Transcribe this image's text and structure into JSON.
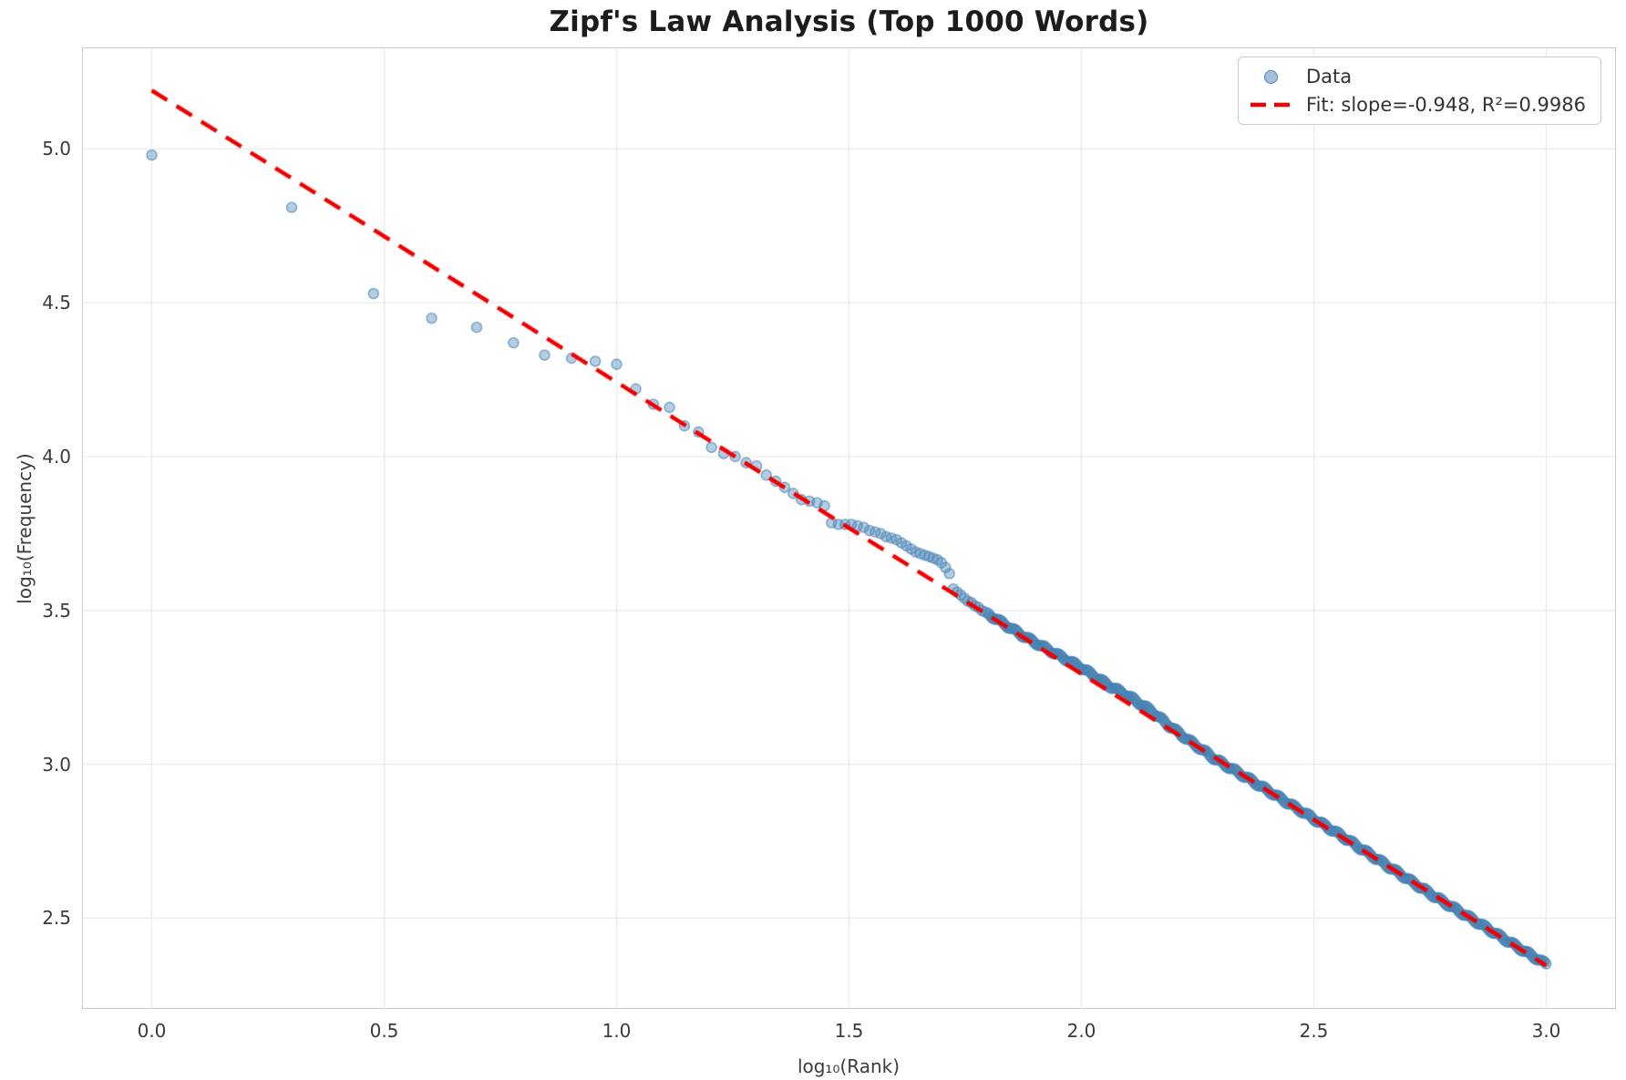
{
  "chart_data": {
    "type": "scatter",
    "title": "Zipf's Law Analysis (Top 1000 Words)",
    "xlabel": "log₁₀(Rank)",
    "ylabel": "log₁₀(Frequency)",
    "xlim": [
      -0.15,
      3.15
    ],
    "ylim": [
      2.205,
      5.33
    ],
    "grid": true,
    "x_ticks": {
      "values": [
        0.0,
        0.5,
        1.0,
        1.5,
        2.0,
        2.5,
        3.0
      ],
      "labels": [
        "0.0",
        "0.5",
        "1.0",
        "1.5",
        "2.0",
        "2.5",
        "3.0"
      ]
    },
    "y_ticks": {
      "values": [
        2.5,
        3.0,
        3.5,
        4.0,
        4.5,
        5.0
      ],
      "labels": [
        "2.5",
        "3.0",
        "3.5",
        "4.0",
        "4.5",
        "5.0"
      ]
    },
    "legend": {
      "position": "upper right",
      "items": [
        {
          "label": "Data",
          "type": "marker"
        },
        {
          "label": "Fit: slope=-0.948, R²=0.9986",
          "type": "dashed-line"
        }
      ]
    },
    "fit": {
      "slope": -0.948,
      "intercept": 5.19,
      "r_squared": 0.9986,
      "x_range": [
        0.0,
        3.0
      ],
      "color": "#f20000",
      "linewidth": 4.5,
      "dash": [
        20,
        12
      ]
    },
    "scatter_style": {
      "radius": 5.5,
      "fill_alpha": 0.4,
      "edge_alpha": 0.75
    },
    "colors": {
      "marker": "#4682b4",
      "marker_rgb": "70,130,180",
      "grid": "#e7e7e7",
      "spine": "#c9c9c9",
      "tick_text": "#3b3b3b",
      "title_text": "#1c1c1c"
    },
    "points_head": [
      [
        0.0,
        4.98
      ],
      [
        0.301,
        4.81
      ],
      [
        0.4771,
        4.53
      ],
      [
        0.6021,
        4.45
      ],
      [
        0.699,
        4.42
      ],
      [
        0.7782,
        4.37
      ],
      [
        0.8451,
        4.33
      ],
      [
        0.9031,
        4.32
      ],
      [
        0.9542,
        4.31
      ],
      [
        1.0,
        4.3
      ],
      [
        1.0414,
        4.22
      ],
      [
        1.0792,
        4.17
      ],
      [
        1.1139,
        4.16
      ],
      [
        1.1461,
        4.1
      ],
      [
        1.1761,
        4.08
      ],
      [
        1.2041,
        4.03
      ],
      [
        1.2304,
        4.01
      ],
      [
        1.2553,
        4.0
      ],
      [
        1.2788,
        3.98
      ],
      [
        1.301,
        3.97
      ],
      [
        1.3222,
        3.94
      ],
      [
        1.3424,
        3.92
      ],
      [
        1.3617,
        3.9
      ],
      [
        1.3802,
        3.88
      ],
      [
        1.3979,
        3.86
      ],
      [
        1.415,
        3.855
      ],
      [
        1.4314,
        3.85
      ],
      [
        1.4472,
        3.84
      ],
      [
        1.4624,
        3.785
      ],
      [
        1.4771,
        3.78
      ],
      [
        1.4914,
        3.78
      ],
      [
        1.5051,
        3.78
      ],
      [
        1.5185,
        3.775
      ],
      [
        1.5315,
        3.77
      ],
      [
        1.5441,
        3.76
      ],
      [
        1.5563,
        3.755
      ],
      [
        1.5682,
        3.75
      ],
      [
        1.5798,
        3.74
      ],
      [
        1.5911,
        3.735
      ],
      [
        1.6021,
        3.73
      ],
      [
        1.6128,
        3.72
      ],
      [
        1.6232,
        3.71
      ],
      [
        1.6335,
        3.7
      ],
      [
        1.6435,
        3.69
      ],
      [
        1.6532,
        3.685
      ],
      [
        1.6628,
        3.68
      ],
      [
        1.6721,
        3.675
      ],
      [
        1.6812,
        3.67
      ],
      [
        1.6902,
        3.665
      ],
      [
        1.699,
        3.655
      ],
      [
        1.7076,
        3.64
      ],
      [
        1.716,
        3.62
      ],
      [
        1.7243,
        3.57
      ],
      [
        1.7324,
        3.56
      ],
      [
        1.7404,
        3.55
      ],
      [
        1.7482,
        3.54
      ],
      [
        1.7559,
        3.53
      ],
      [
        1.7634,
        3.525
      ],
      [
        1.7709,
        3.515
      ],
      [
        1.7782,
        3.51
      ],
      [
        1.7853,
        3.5
      ],
      [
        1.7924,
        3.495
      ]
    ],
    "points_tail_spec": {
      "comment": "dense band for ranks ~63..1000; y = intercept + slope*x + deviation(x) + jitter",
      "x_start": 1.799,
      "x_end": 3.0,
      "x_step": 0.0035,
      "jitter_amplitude": 0.005,
      "deviation_anchors": [
        [
          1.799,
          0.004
        ],
        [
          1.88,
          0.005
        ],
        [
          1.94,
          0.012
        ],
        [
          2.0,
          0.02
        ],
        [
          2.06,
          0.018
        ],
        [
          2.1,
          0.024
        ],
        [
          2.15,
          0.022
        ],
        [
          2.19,
          0.01
        ],
        [
          2.23,
          0.003
        ],
        [
          2.29,
          -0.004
        ],
        [
          2.36,
          0.0
        ],
        [
          2.46,
          0.002
        ],
        [
          2.56,
          0.004
        ],
        [
          2.66,
          0.0
        ],
        [
          2.76,
          -0.003
        ],
        [
          2.86,
          0.0
        ],
        [
          2.95,
          0.002
        ],
        [
          3.0,
          0.004
        ]
      ]
    }
  }
}
